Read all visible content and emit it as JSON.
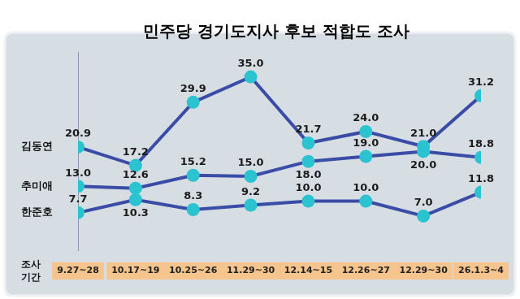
{
  "chart_data": {
    "type": "line",
    "title": "민주당 경기도지사 후보 적합도 조사",
    "x_label": "조사 기간",
    "categories": [
      "9.27~28",
      "10.17~19",
      "10.25~26",
      "11.29~30",
      "12.14~15",
      "12.26~27",
      "12.29~30",
      "26.1.3~4"
    ],
    "series": [
      {
        "name": "김동연",
        "color": "#3b4ca6",
        "values": [
          20.9,
          17.2,
          29.9,
          35.0,
          21.7,
          24.0,
          21.0,
          31.2
        ],
        "value_labels": [
          "20.9",
          "17.2",
          "29.9",
          "35.0",
          "21.7",
          "24.0",
          "21.0",
          "31.2"
        ]
      },
      {
        "name": "추미애",
        "color": "#3b4ca6",
        "values": [
          13.0,
          12.6,
          15.2,
          15.0,
          18.0,
          19.0,
          20.0,
          18.8
        ],
        "value_labels": [
          "13.0",
          "12.6",
          "15.2",
          "15.0",
          "18.0",
          "19.0",
          "20.0",
          "18.8"
        ]
      },
      {
        "name": "한준호",
        "color": "#3b4ca6",
        "values": [
          7.7,
          10.3,
          8.3,
          9.2,
          10.0,
          10.0,
          7.0,
          11.8
        ],
        "value_labels": [
          "7.7",
          "10.3",
          "8.3",
          "9.2",
          "10.0",
          "10.0",
          "7.0",
          "11.8"
        ]
      }
    ],
    "ylim": [
      0,
      40
    ],
    "yticks": [],
    "grid": false,
    "data_labels": true,
    "tick_labels": "x",
    "marker": "circle",
    "line_style": "solid"
  }
}
